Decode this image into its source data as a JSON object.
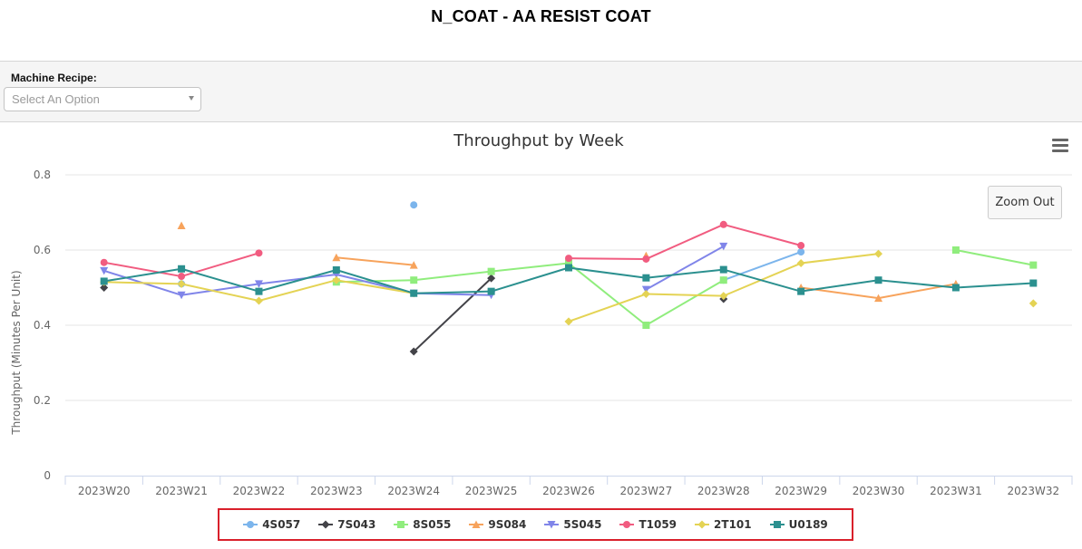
{
  "page": {
    "title": "N_COAT - AA RESIST COAT"
  },
  "filter": {
    "label": "Machine Recipe:",
    "placeholder": "Select An Option"
  },
  "toolbar": {
    "zoom_out_label": "Zoom Out",
    "menu_icon": "hamburger-menu-icon"
  },
  "chart_data": {
    "type": "line",
    "title": "Throughput by Week",
    "ylabel": "Throughput (Minutes Per Unit)",
    "xlabel": "",
    "ylim": [
      0,
      0.8
    ],
    "yticks": [
      "0",
      "0.2",
      "0.4",
      "0.6",
      "0.8"
    ],
    "grid": true,
    "legend_position": "bottom",
    "categories": [
      "2023W20",
      "2023W21",
      "2023W22",
      "2023W23",
      "2023W24",
      "2023W25",
      "2023W26",
      "2023W27",
      "2023W28",
      "2023W29",
      "2023W30",
      "2023W31",
      "2023W32"
    ],
    "series": [
      {
        "name": "4S057",
        "color": "#7cb5ec",
        "marker": "circle",
        "values": [
          null,
          0.51,
          null,
          null,
          0.72,
          null,
          null,
          null,
          0.52,
          0.595,
          null,
          null,
          null
        ]
      },
      {
        "name": "7S043",
        "color": "#434348",
        "marker": "diamond",
        "values": [
          0.5,
          null,
          null,
          null,
          0.33,
          0.525,
          null,
          null,
          0.47,
          null,
          null,
          null,
          null
        ]
      },
      {
        "name": "8S055",
        "color": "#90ed7d",
        "marker": "square",
        "values": [
          null,
          null,
          null,
          0.515,
          0.52,
          0.543,
          0.565,
          0.4,
          0.52,
          null,
          null,
          0.6,
          0.56
        ]
      },
      {
        "name": "9S084",
        "color": "#f7a35c",
        "marker": "triangle",
        "values": [
          null,
          0.665,
          null,
          0.58,
          0.56,
          null,
          null,
          0.585,
          null,
          0.5,
          0.472,
          0.51,
          null
        ]
      },
      {
        "name": "5S045",
        "color": "#8085e9",
        "marker": "triangle-down",
        "values": [
          0.545,
          0.48,
          0.51,
          0.535,
          0.485,
          0.48,
          null,
          0.495,
          0.61,
          null,
          null,
          null,
          null
        ]
      },
      {
        "name": "T1059",
        "color": "#f15c80",
        "marker": "circle",
        "values": [
          0.567,
          0.53,
          0.592,
          null,
          null,
          null,
          0.578,
          0.576,
          0.668,
          0.612,
          null,
          null,
          null
        ]
      },
      {
        "name": "2T101",
        "color": "#e4d354",
        "marker": "diamond",
        "values": [
          0.515,
          0.51,
          0.465,
          0.52,
          0.485,
          null,
          0.41,
          0.483,
          0.478,
          0.565,
          0.59,
          null,
          0.458
        ]
      },
      {
        "name": "U0189",
        "color": "#2b908f",
        "marker": "square",
        "values": [
          0.517,
          0.55,
          0.49,
          0.547,
          0.485,
          0.49,
          0.553,
          0.526,
          0.548,
          0.49,
          0.52,
          0.5,
          0.512
        ]
      }
    ]
  }
}
